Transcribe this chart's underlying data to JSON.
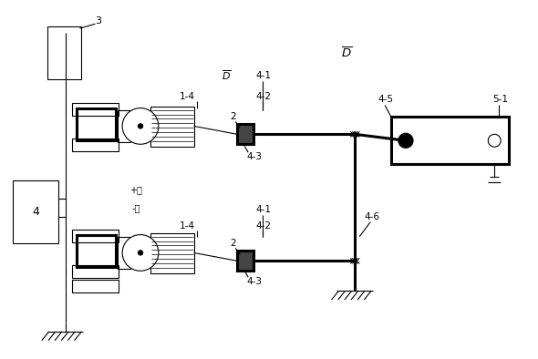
{
  "fig_width": 5.9,
  "fig_height": 3.94,
  "dpi": 100,
  "bg_color": "#ffffff",
  "line_color": "#000000",
  "thick_lw": 2.2,
  "thin_lw": 0.8,
  "med_lw": 1.2
}
